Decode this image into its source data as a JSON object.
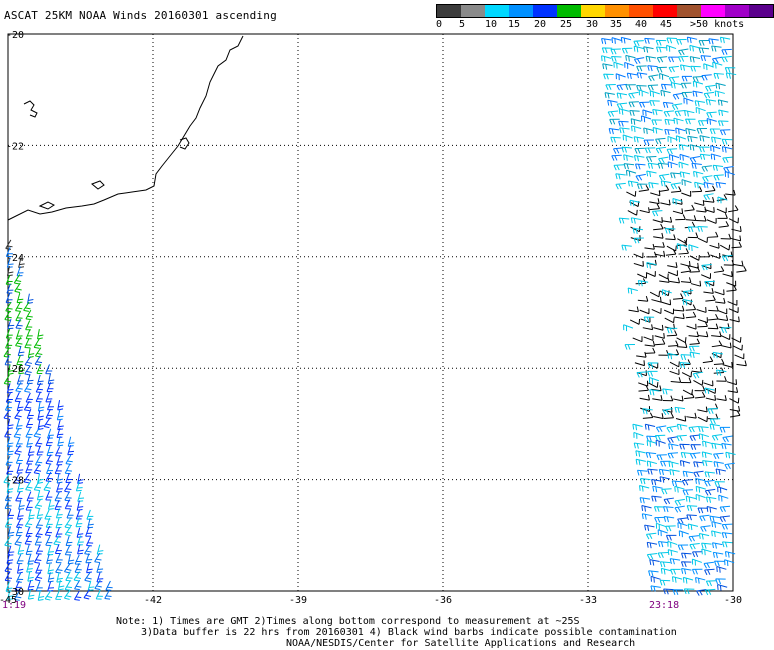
{
  "title": "ASCAT 25KM NOAA Winds 20160301 ascending",
  "legend": {
    "colors": [
      "#3c3c3c",
      "#8a8a8a",
      "#00d8ff",
      "#0090ff",
      "#0032ff",
      "#00bb00",
      "#ffd700",
      "#ff9000",
      "#ff5000",
      "#ff0000",
      "#a0522d",
      "#ff00ff",
      "#a000c8",
      "#5a008c"
    ],
    "labels": [
      "0",
      "5",
      "10",
      "15",
      "20",
      "25",
      "30",
      "35",
      "40",
      "45",
      ">50 knots"
    ]
  },
  "axes": {
    "lat_labels": [
      "-20",
      "-22",
      "-24",
      "-26",
      "-28",
      "-30"
    ],
    "lon_labels": [
      "-45",
      "-42",
      "-39",
      "-36",
      "-33",
      "-30"
    ]
  },
  "times": {
    "left": "1:19",
    "right": "23:18"
  },
  "notes": [
    "Note: 1) Times are GMT 2)Times along bottom correspond to measurement at ~25S",
    "3)Data buffer is 22 hrs from 20160301 4) Black wind barbs indicate possible contamination",
    "NOAA/NESDIS/Center for Satellite Applications and Research"
  ]
}
